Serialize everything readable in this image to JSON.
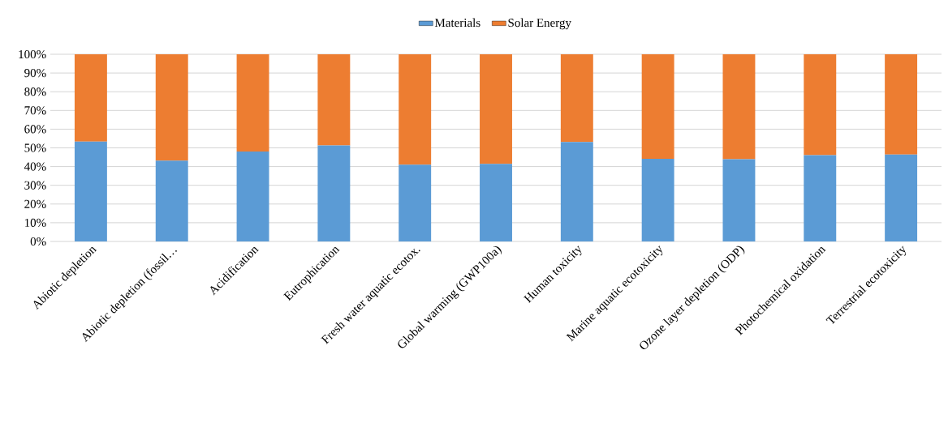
{
  "chart_data": {
    "type": "bar",
    "stacked": true,
    "categories": [
      "Abiotic depletion",
      "Abiotic depletion (fossil…",
      "Acidification",
      "Eutrophication",
      "Fresh water aquatic ecotox.",
      "Global warming (GWP100a)",
      "Human toxicity",
      "Marine aquatic ecotoxicity",
      "Ozone layer depletion (ODP)",
      "Photochemical oxidation",
      "Terrestrial ecotoxicity"
    ],
    "series": [
      {
        "name": "Materials",
        "color": "#5b9bd5",
        "values": [
          53.4,
          43.2,
          48.0,
          51.3,
          41.0,
          41.5,
          53.1,
          44.2,
          43.9,
          46.1,
          46.4
        ]
      },
      {
        "name": "Solar Energy",
        "color": "#ed7d31",
        "values": [
          46.6,
          56.8,
          52.0,
          48.7,
          59.0,
          58.5,
          46.9,
          55.8,
          56.1,
          53.9,
          53.6
        ]
      }
    ],
    "ylim": [
      0,
      100
    ],
    "yticks": [
      {
        "value": 0,
        "label": "0%"
      },
      {
        "value": 10,
        "label": "10%"
      },
      {
        "value": 20,
        "label": "20%"
      },
      {
        "value": 30,
        "label": "30%"
      },
      {
        "value": 40,
        "label": "40%"
      },
      {
        "value": 50,
        "label": "50%"
      },
      {
        "value": 60,
        "label": "60%"
      },
      {
        "value": 70,
        "label": "70%"
      },
      {
        "value": 80,
        "label": "80%"
      },
      {
        "value": 90,
        "label": "90%"
      },
      {
        "value": 100,
        "label": "100%"
      }
    ],
    "grid": "y",
    "legend": "top"
  }
}
